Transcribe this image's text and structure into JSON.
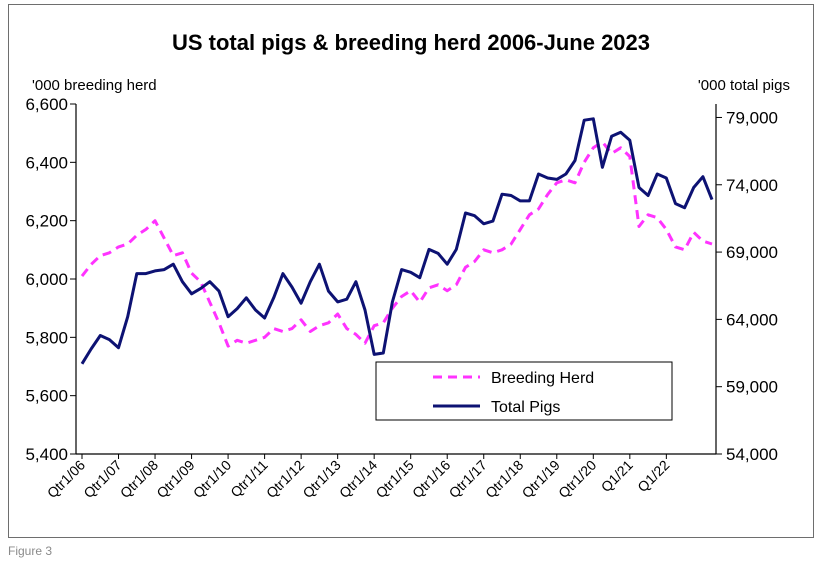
{
  "caption": "Figure 3",
  "chart_data": {
    "type": "line",
    "title": "US total pigs & breeding herd 2006-June 2023",
    "y_left_label": "'000 breeding herd",
    "y_right_label": "'000 total pigs",
    "y_left_lim": [
      5400,
      6600
    ],
    "y_left_ticks": [
      "5,400",
      "5,600",
      "5,800",
      "6,000",
      "6,200",
      "6,400",
      "6,600"
    ],
    "y_right_lim": [
      54000,
      80000
    ],
    "y_right_ticks": [
      "54,000",
      "59,000",
      "64,000",
      "69,000",
      "74,000",
      "79,000"
    ],
    "x_ticks": [
      "Qtr1/06",
      "Qtr1/07",
      "Qtr1/08",
      "Qtr1/09",
      "Qtr1/10",
      "Qtr1/11",
      "Qtr1/12",
      "Qtr1/13",
      "Qtr1/14",
      "Qtr1/15",
      "Qtr1/16",
      "Qtr1/17",
      "Qtr1/18",
      "Qtr1/19",
      "Qtr1/20",
      "Q1/21",
      "Q1/22"
    ],
    "x": [
      "Q1 2006",
      "Q2 2006",
      "Q3 2006",
      "Q4 2006",
      "Q1 2007",
      "Q2 2007",
      "Q3 2007",
      "Q4 2007",
      "Q1 2008",
      "Q2 2008",
      "Q3 2008",
      "Q4 2008",
      "Q1 2009",
      "Q2 2009",
      "Q3 2009",
      "Q4 2009",
      "Q1 2010",
      "Q2 2010",
      "Q3 2010",
      "Q4 2010",
      "Q1 2011",
      "Q2 2011",
      "Q3 2011",
      "Q4 2011",
      "Q1 2012",
      "Q2 2012",
      "Q3 2012",
      "Q4 2012",
      "Q1 2013",
      "Q2 2013",
      "Q3 2013",
      "Q4 2013",
      "Q1 2014",
      "Q2 2014",
      "Q3 2014",
      "Q4 2014",
      "Q1 2015",
      "Q2 2015",
      "Q3 2015",
      "Q4 2015",
      "Q1 2016",
      "Q2 2016",
      "Q3 2016",
      "Q4 2016",
      "Q1 2017",
      "Q2 2017",
      "Q3 2017",
      "Q4 2017",
      "Q1 2018",
      "Q2 2018",
      "Q3 2018",
      "Q4 2018",
      "Q1 2019",
      "Q2 2019",
      "Q3 2019",
      "Q4 2019",
      "Q1 2020",
      "Q2 2020",
      "Q3 2020",
      "Q4 2020",
      "Q1 2021",
      "Q2 2021",
      "Q3 2021",
      "Q4 2021",
      "Q1 2022",
      "Q2 2022",
      "Q3 2022",
      "Q4 2022",
      "Q1 2023",
      "Q2 2023"
    ],
    "series": [
      {
        "name": "Breeding Herd",
        "axis": "left",
        "color": "#ff33ff",
        "style": "dashed",
        "values": [
          6010,
          6050,
          6080,
          6090,
          6110,
          6120,
          6150,
          6170,
          6200,
          6140,
          6080,
          6090,
          6020,
          5990,
          5920,
          5850,
          5770,
          5790,
          5780,
          5790,
          5800,
          5830,
          5820,
          5830,
          5860,
          5820,
          5840,
          5850,
          5880,
          5830,
          5810,
          5780,
          5840,
          5850,
          5900,
          5940,
          5960,
          5920,
          5970,
          5980,
          5960,
          5980,
          6040,
          6060,
          6100,
          6090,
          6100,
          6120,
          6170,
          6220,
          6240,
          6290,
          6330,
          6340,
          6330,
          6400,
          6450,
          6470,
          6430,
          6450,
          6420,
          6180,
          6220,
          6210,
          6170,
          6110,
          6100,
          6160,
          6130,
          6120
        ]
      },
      {
        "name": "Total Pigs",
        "axis": "right",
        "color": "#0d1273",
        "style": "solid",
        "values": [
          60700,
          61800,
          62800,
          62500,
          61900,
          64200,
          67400,
          67400,
          67600,
          67700,
          68100,
          66800,
          65900,
          66300,
          66800,
          66100,
          64200,
          64800,
          65600,
          64700,
          64100,
          65600,
          67400,
          66400,
          65200,
          66800,
          68100,
          66100,
          65300,
          65500,
          66800,
          64700,
          61400,
          61500,
          65300,
          67700,
          67500,
          67100,
          69200,
          68900,
          68100,
          69200,
          71900,
          71700,
          71100,
          71300,
          73300,
          73200,
          72800,
          72800,
          74800,
          74500,
          74400,
          74800,
          75800,
          78800,
          78900,
          75300,
          77600,
          77900,
          77300,
          73800,
          73200,
          74800,
          74500,
          72600,
          72300,
          73800,
          74600,
          72900
        ]
      }
    ],
    "legend": {
      "position": "bottom-right",
      "items": [
        "Breeding Herd",
        "Total Pigs"
      ]
    },
    "grid": false
  }
}
